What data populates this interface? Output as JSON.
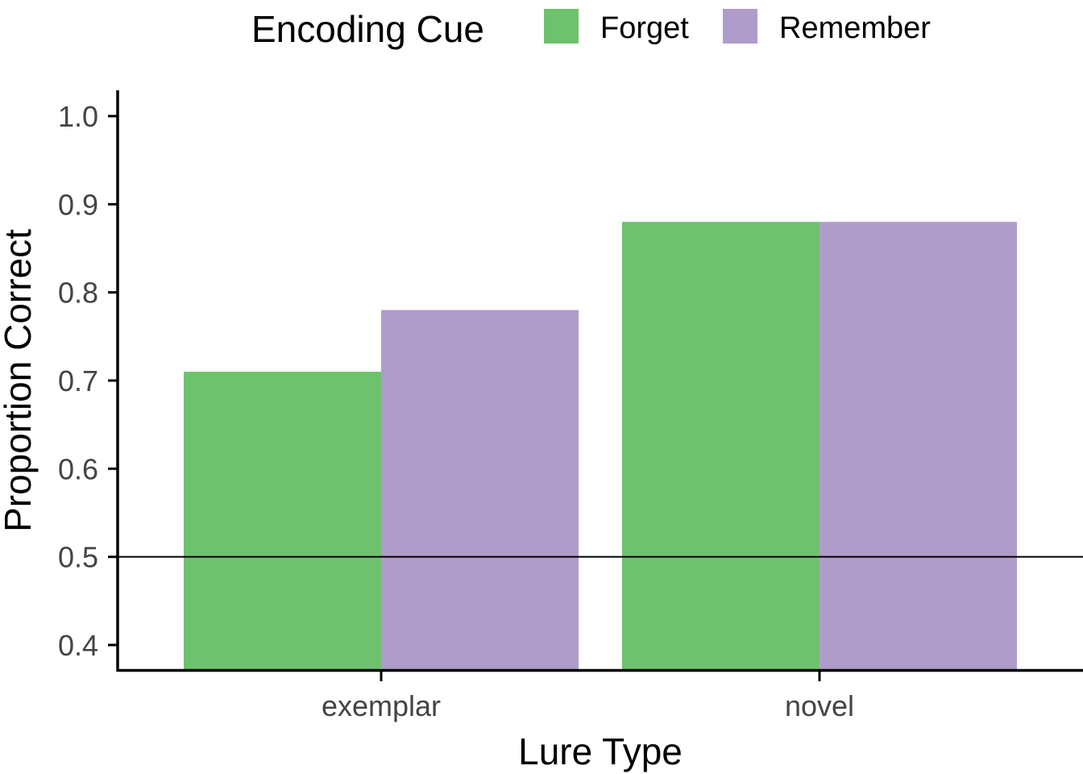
{
  "chart_data": {
    "type": "bar",
    "categories": [
      "exemplar",
      "novel"
    ],
    "series": [
      {
        "name": "Forget",
        "values": [
          0.71,
          0.88
        ],
        "color": "#6FC26D"
      },
      {
        "name": "Remember",
        "values": [
          0.78,
          0.88
        ],
        "color": "#B09CCB"
      }
    ],
    "xlabel": "Lure Type",
    "ylabel": "Proportion Correct",
    "ylim": [
      0.37,
      1.03
    ],
    "yticks": [
      "0.4",
      "0.5",
      "0.6",
      "0.7",
      "0.8",
      "0.9",
      "1.0"
    ],
    "reference_line": 0.5,
    "grid": false,
    "legend": {
      "title": "Encoding Cue",
      "position": "top"
    }
  }
}
